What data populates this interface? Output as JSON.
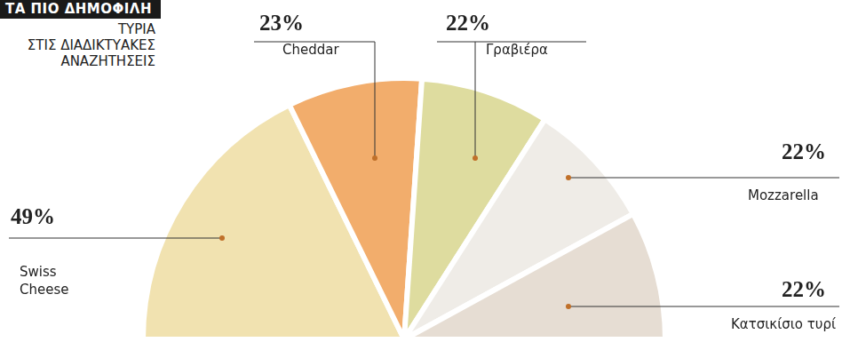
{
  "chart_data": {
    "type": "pie",
    "title": "ΤΑ ΠΙΟ ΔΗΜΟΦΙΛΗ",
    "subtitle": [
      "ΤΥΡΙΑ",
      "ΣΤΙΣ ΔΙΑΔΙΚΤΥΑΚΕΣ",
      "ΑΝΑΖΗΤΗΣΕΙΣ"
    ],
    "categories": [
      "Swiss Cheese",
      "Cheddar",
      "Γραβιέρα",
      "Mozzarella",
      "Κατσικίσιο τυρί"
    ],
    "values": [
      49,
      23,
      22,
      22,
      22
    ],
    "value_labels": [
      "49%",
      "23%",
      "22%",
      "22%",
      "22%"
    ],
    "colors": [
      "#f1e2b0",
      "#f2ad6c",
      "#dedc9f",
      "#efece7",
      "#e6ddd3"
    ],
    "data_labels": true
  }
}
